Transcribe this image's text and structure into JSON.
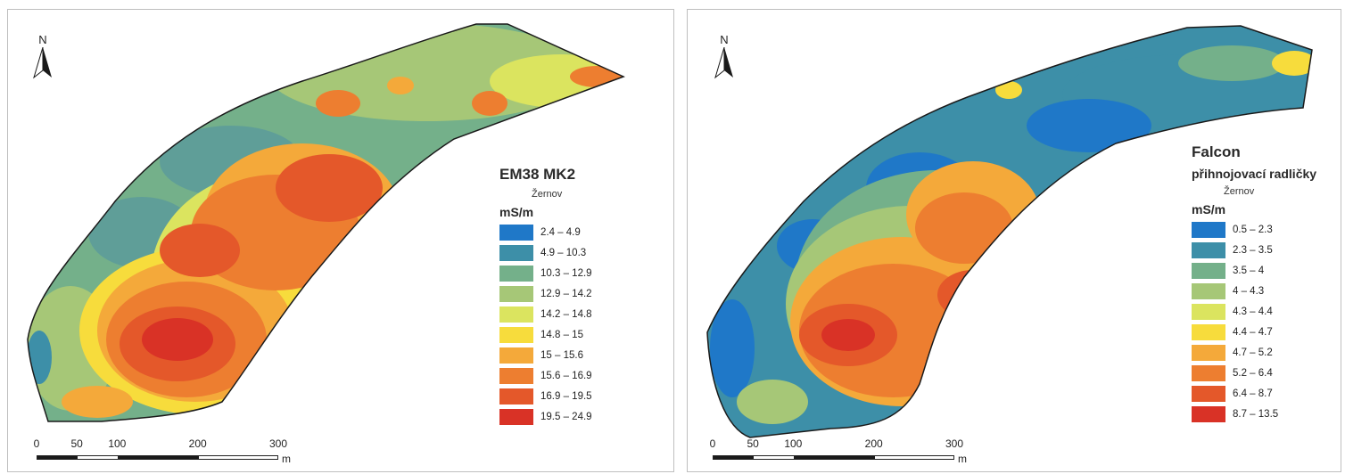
{
  "maps": [
    {
      "title": "EM38 MK2",
      "subtitle": "",
      "location": "Žernov",
      "unit": "mS/m",
      "north_label": "N",
      "classes": [
        {
          "label": "2.4 – 4.9",
          "color": "#1f78c8"
        },
        {
          "label": "4.9 – 10.3",
          "color": "#3d8fa8"
        },
        {
          "label": "10.3 – 12.9",
          "color": "#74b08a"
        },
        {
          "label": "12.9 – 14.2",
          "color": "#a6c777"
        },
        {
          "label": "14.2 – 14.8",
          "color": "#dbe45f"
        },
        {
          "label": "14.8 – 15",
          "color": "#f7dc3c"
        },
        {
          "label": "15 – 15.6",
          "color": "#f4a93a"
        },
        {
          "label": "15.6 – 16.9",
          "color": "#ed7e30"
        },
        {
          "label": "16.9 – 19.5",
          "color": "#e4582a"
        },
        {
          "label": "19.5 – 24.9",
          "color": "#d93226"
        }
      ],
      "scale": {
        "ticks": [
          "0",
          "50",
          "100",
          "200",
          "300"
        ],
        "unit": "m"
      }
    },
    {
      "title": "Falcon",
      "subtitle": "přihnojovací radličky",
      "location": "Žernov",
      "unit": "mS/m",
      "north_label": "N",
      "classes": [
        {
          "label": "0.5 – 2.3",
          "color": "#1f78c8"
        },
        {
          "label": "2.3 – 3.5",
          "color": "#3d8fa8"
        },
        {
          "label": "3.5 – 4",
          "color": "#74b08a"
        },
        {
          "label": "4 – 4.3",
          "color": "#a6c777"
        },
        {
          "label": "4.3 – 4.4",
          "color": "#dbe45f"
        },
        {
          "label": "4.4 – 4.7",
          "color": "#f7dc3c"
        },
        {
          "label": "4.7 – 5.2",
          "color": "#f4a93a"
        },
        {
          "label": "5.2 – 6.4",
          "color": "#ed7e30"
        },
        {
          "label": "6.4 – 8.7",
          "color": "#e4582a"
        },
        {
          "label": "8.7 – 13.5",
          "color": "#d93226"
        }
      ],
      "scale": {
        "ticks": [
          "0",
          "50",
          "100",
          "200",
          "300"
        ],
        "unit": "m"
      }
    }
  ]
}
